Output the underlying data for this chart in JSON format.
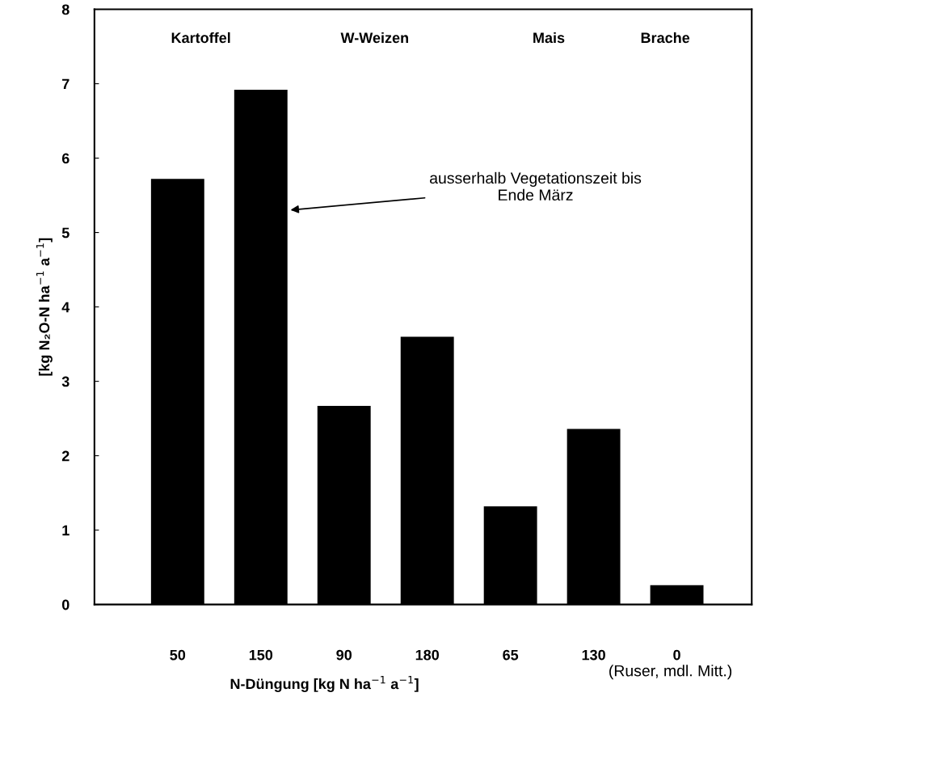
{
  "chart_data": {
    "type": "bar",
    "categories": [
      "50",
      "150",
      "90",
      "180",
      "65",
      "130",
      "0"
    ],
    "values": [
      5.72,
      6.92,
      2.67,
      3.6,
      1.32,
      2.36,
      0.26
    ],
    "color": "#000000",
    "xlabel": "N-Düngung [kg N ha$^{−1}$ a$^{−1}$]",
    "ylabel": "[kg N₂O-N ha$^{−1}$ a$^{−1}$]",
    "ylim": [
      0,
      8
    ],
    "yticks": [
      0,
      1,
      2,
      3,
      4,
      5,
      6,
      7,
      8
    ],
    "grid": false,
    "legend": false,
    "annotations": [
      "Kartoffel",
      "W-Weizen",
      "Mais",
      "Brache",
      "ausserhalb Vegetationszeit bis\nEnde März",
      "(Ruser, mdl. Mitt.)"
    ]
  }
}
